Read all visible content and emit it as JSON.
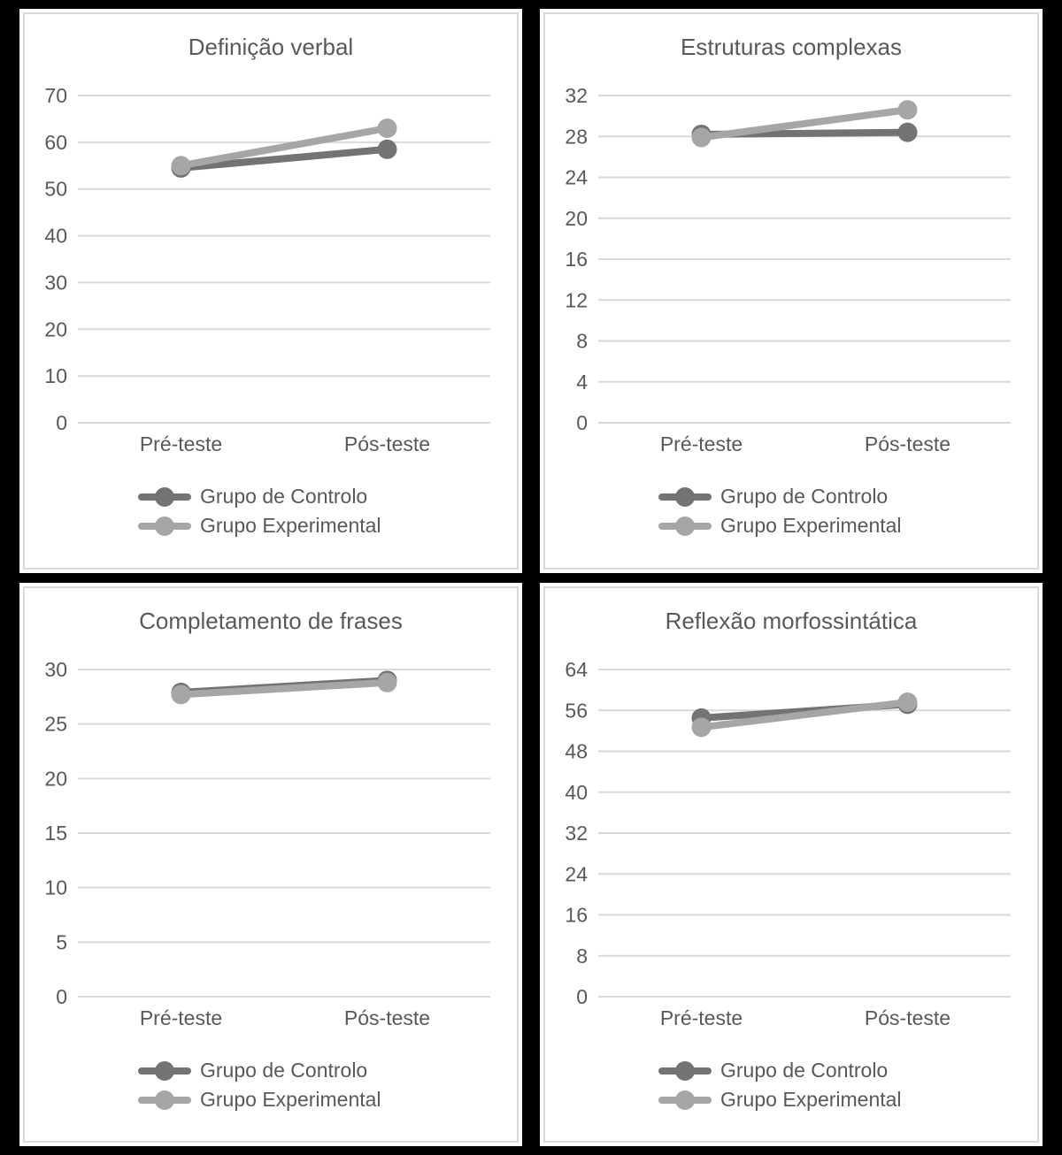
{
  "page": {
    "background": "#000000",
    "panel_background": "#ffffff",
    "panel_border_color": "#d9d9d9",
    "grid_color": "#d9d9d9",
    "text_color": "#595959"
  },
  "chart_data": [
    {
      "type": "line",
      "title": "Definição verbal",
      "categories": [
        "Pré-teste",
        "Pós-teste"
      ],
      "ymin": 0,
      "ymax": 70,
      "ystep": 10,
      "grid": true,
      "legend_position": "bottom",
      "series": [
        {
          "name": "Grupo de Controlo",
          "color": "#737373",
          "values": [
            54.5,
            58.5
          ]
        },
        {
          "name": "Grupo Experimental",
          "color": "#a6a6a6",
          "values": [
            55.0,
            63.0
          ]
        }
      ]
    },
    {
      "type": "line",
      "title": "Estruturas complexas",
      "categories": [
        "Pré-teste",
        "Pós-teste"
      ],
      "ymin": 0,
      "ymax": 32,
      "ystep": 4,
      "grid": true,
      "legend_position": "bottom",
      "series": [
        {
          "name": "Grupo de Controlo",
          "color": "#737373",
          "values": [
            28.2,
            28.4
          ]
        },
        {
          "name": "Grupo Experimental",
          "color": "#a6a6a6",
          "values": [
            27.9,
            30.6
          ]
        }
      ]
    },
    {
      "type": "line",
      "title": "Completamento de frases",
      "categories": [
        "Pré-teste",
        "Pós-teste"
      ],
      "ymin": 0,
      "ymax": 30,
      "ystep": 5,
      "grid": true,
      "legend_position": "bottom",
      "series": [
        {
          "name": "Grupo de Controlo",
          "color": "#737373",
          "values": [
            27.9,
            29.0
          ]
        },
        {
          "name": "Grupo Experimental",
          "color": "#a6a6a6",
          "values": [
            27.7,
            28.8
          ]
        }
      ]
    },
    {
      "type": "line",
      "title": "Reflexão morfossintática",
      "categories": [
        "Pré-teste",
        "Pós-teste"
      ],
      "ymin": 0,
      "ymax": 64,
      "ystep": 8,
      "grid": true,
      "legend_position": "bottom",
      "series": [
        {
          "name": "Grupo de Controlo",
          "color": "#737373",
          "values": [
            54.5,
            57.2
          ]
        },
        {
          "name": "Grupo Experimental",
          "color": "#a6a6a6",
          "values": [
            52.7,
            57.6
          ]
        }
      ]
    }
  ]
}
